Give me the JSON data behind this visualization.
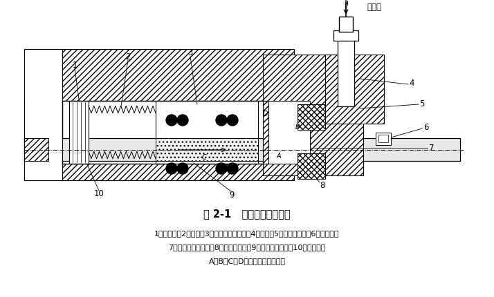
{
  "title": "图 2-1   机械密封结构原理",
  "caption_line1": "1一弹簧座；2一弹簧；3一旋转环（动环）；4一压盖；5一静环密封圈；6一防转销；",
  "caption_line2": "7一静止环（静环）；8一动环密封圈；9一轴（或轴套）；10一紧定螺钉",
  "caption_line3": "A，B，C，D一密封部位（通道）",
  "flush_label": "冲洗液",
  "bg_color": "#ffffff"
}
